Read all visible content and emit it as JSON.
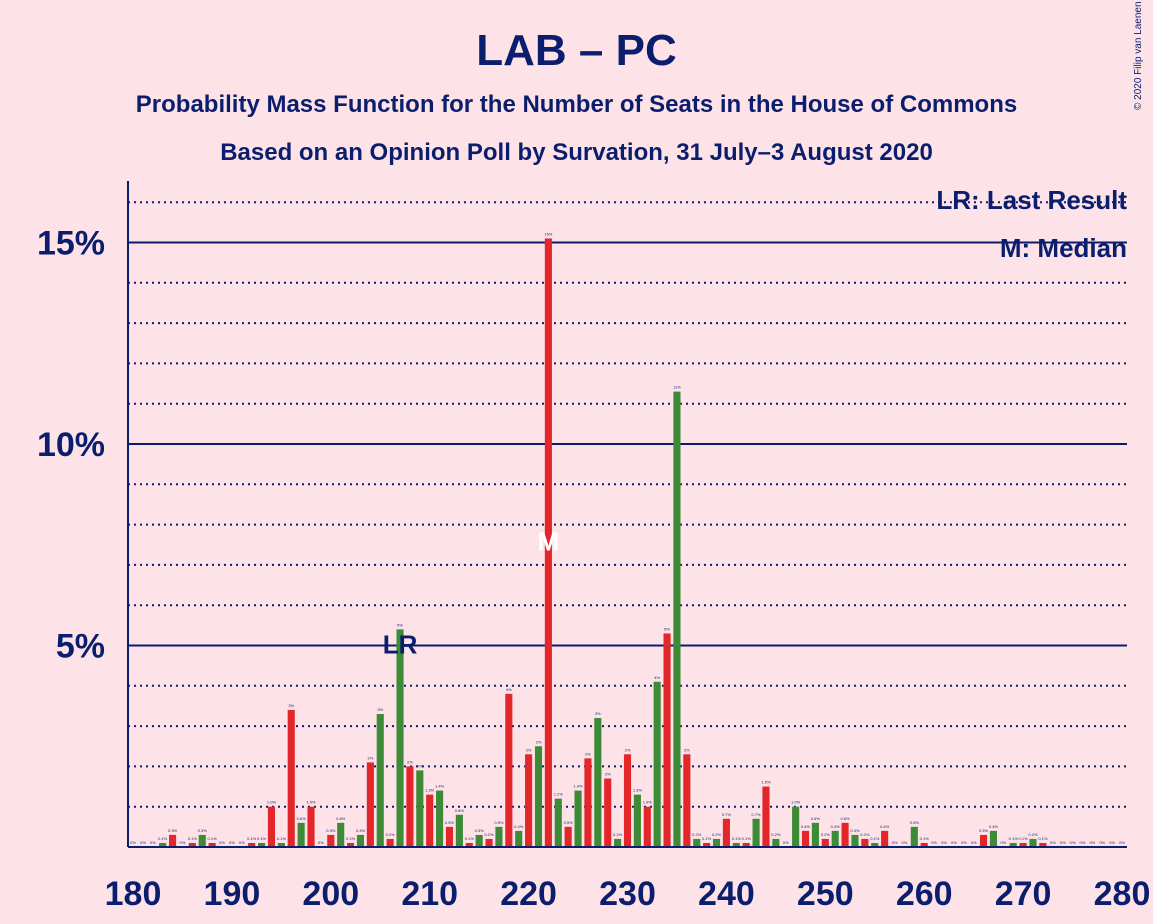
{
  "title": "LAB – PC",
  "subtitle1": "Probability Mass Function for the Number of Seats in the House of Commons",
  "subtitle2": "Based on an Opinion Poll by Survation, 31 July–3 August 2020",
  "copyright": "© 2020 Filip van Laenen",
  "legend": {
    "last_result": "LR: Last Result",
    "median": "M: Median"
  },
  "colors": {
    "background": "#fde3e8",
    "axis": "#0b1e6e",
    "red": "#e3262a",
    "green": "#3d8b37"
  },
  "chart_data": {
    "type": "bar",
    "xlim": [
      180,
      280
    ],
    "ylim": [
      0,
      16.5
    ],
    "xticks": [
      "180",
      "190",
      "200",
      "210",
      "220",
      "230",
      "240",
      "250",
      "260",
      "270",
      "280"
    ],
    "yticks": [
      {
        "value": 5,
        "label": "5%"
      },
      {
        "value": 10,
        "label": "10%"
      },
      {
        "value": 15,
        "label": "15%"
      }
    ],
    "grid": "dotted every 1%, solid at 5% steps",
    "last_result": {
      "seat": 207,
      "label": "LR"
    },
    "median": {
      "seat": 222,
      "label": "M"
    },
    "x": [
      180,
      181,
      182,
      183,
      184,
      185,
      186,
      187,
      188,
      189,
      190,
      191,
      192,
      193,
      194,
      195,
      196,
      197,
      198,
      199,
      200,
      201,
      202,
      203,
      204,
      205,
      206,
      207,
      208,
      209,
      210,
      211,
      212,
      213,
      214,
      215,
      216,
      217,
      218,
      219,
      220,
      221,
      222,
      223,
      224,
      225,
      226,
      227,
      228,
      229,
      230,
      231,
      232,
      233,
      234,
      235,
      236,
      237,
      238,
      239,
      240,
      241,
      242,
      243,
      244,
      245,
      246,
      247,
      248,
      249,
      250,
      251,
      252,
      253,
      254,
      255,
      256,
      257,
      258,
      259,
      260,
      261,
      262,
      263,
      264,
      265,
      266,
      267,
      268,
      269,
      270,
      271,
      272,
      273,
      274,
      275,
      276,
      277,
      278,
      279,
      280
    ],
    "values": [
      0,
      0,
      0,
      0.1,
      0.3,
      0,
      0.1,
      0.3,
      0.1,
      0,
      0,
      0,
      0.1,
      0.1,
      1.0,
      0.1,
      3.4,
      0.6,
      1.0,
      0,
      0.3,
      0.6,
      0.1,
      0.3,
      2.1,
      3.3,
      0.2,
      5.4,
      2.0,
      1.9,
      1.3,
      1.4,
      0.5,
      0.8,
      0.1,
      0.3,
      0.2,
      0.5,
      3.8,
      0.4,
      2.3,
      2.5,
      15.1,
      1.2,
      0.5,
      1.4,
      2.2,
      3.2,
      1.7,
      0.2,
      2.3,
      1.3,
      1.0,
      4.1,
      5.3,
      11.3,
      2.3,
      0.2,
      0.1,
      0.2,
      0.7,
      0.1,
      0.1,
      0.7,
      1.5,
      0.2,
      0,
      1.0,
      0.4,
      0.6,
      0.2,
      0.4,
      0.6,
      0.3,
      0.2,
      0.1,
      0.4,
      0,
      0,
      0.5,
      0.1,
      0,
      0,
      0,
      0,
      0,
      0.3,
      0.4,
      0,
      0.1,
      0.1,
      0.2,
      0.1,
      0,
      0,
      0,
      0,
      0,
      0,
      0,
      0
    ],
    "value_labels": [
      "0%",
      "0%",
      "0%",
      "0.1%",
      "0.3%",
      "0%",
      "0.1%",
      "0.3%",
      "0.1%",
      "0%",
      "0%",
      "0%",
      "0.1%",
      "0.1%",
      "1.0%",
      "0.1%",
      "3%",
      "0.6%",
      "1.0%",
      "0%",
      "0.3%",
      "0.6%",
      "0.1%",
      "0.3%",
      "2%",
      "3%",
      "0.2%",
      "5%",
      "2%",
      "2%",
      "1.3%",
      "1.4%",
      "0.5%",
      "0.8%",
      "0.1%",
      "0.3%",
      "0.2%",
      "0.5%",
      "4%",
      "0.4%",
      "2%",
      "2%",
      "15%",
      "1.2%",
      "0.5%",
      "1.4%",
      "2%",
      "3%",
      "2%",
      "0.2%",
      "2%",
      "1.3%",
      "1.0%",
      "4%",
      "5%",
      "11%",
      "2%",
      "0.2%",
      "0.1%",
      "0.2%",
      "0.7%",
      "0.1%",
      "0.1%",
      "0.7%",
      "1.5%",
      "0.2%",
      "0%",
      "1.0%",
      "0.4%",
      "0.6%",
      "0.2%",
      "0.4%",
      "0.6%",
      "0.3%",
      "0.2%",
      "0.1%",
      "0.4%",
      "0%",
      "0%",
      "0.5%",
      "0.1%",
      "0%",
      "0%",
      "0%",
      "0%",
      "0%",
      "0.3%",
      "0.4%",
      "0%",
      "0.1%",
      "0.1%",
      "0.2%",
      "0.1%",
      "0%",
      "0%",
      "0%",
      "0%",
      "0%",
      "0%",
      "0%",
      "0%"
    ]
  }
}
